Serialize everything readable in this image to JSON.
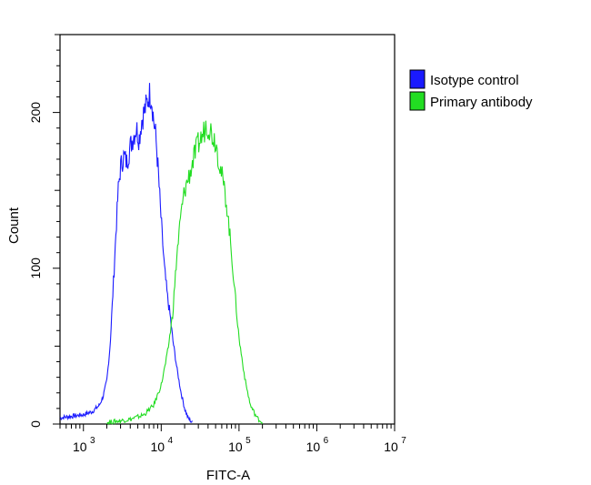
{
  "chart_data": {
    "type": "line",
    "title": "",
    "xlabel": "FITC-A",
    "ylabel": "Count",
    "x_scale": "log",
    "xlim": [
      500,
      10000000
    ],
    "ylim": [
      0,
      250
    ],
    "grid": false,
    "legend_position": "right",
    "x_ticks": [
      {
        "value": 1000,
        "base": "10",
        "exp": "3"
      },
      {
        "value": 10000,
        "base": "10",
        "exp": "4"
      },
      {
        "value": 100000,
        "base": "10",
        "exp": "5"
      },
      {
        "value": 1000000,
        "base": "10",
        "exp": "6"
      },
      {
        "value": 10000000,
        "base": "10",
        "exp": "7"
      }
    ],
    "y_ticks": [
      {
        "value": 0,
        "label": "0"
      },
      {
        "value": 100,
        "label": "100"
      },
      {
        "value": 200,
        "label": "200"
      }
    ],
    "series": [
      {
        "name": "Isotype control",
        "color": "#1a1aff",
        "x": [
          500,
          1000,
          1300,
          1600,
          1800,
          2000,
          2200,
          2400,
          2600,
          2800,
          3000,
          3300,
          3600,
          4000,
          4400,
          4800,
          5200,
          5600,
          6000,
          6500,
          7000,
          7500,
          8000,
          8500,
          9000,
          10000,
          11000,
          12000,
          13000,
          14000,
          16000,
          18000,
          20000,
          22000,
          25000
        ],
        "y": [
          4,
          6,
          8,
          12,
          18,
          28,
          50,
          85,
          120,
          150,
          165,
          172,
          168,
          178,
          185,
          190,
          183,
          195,
          200,
          205,
          212,
          210,
          195,
          185,
          168,
          130,
          100,
          82,
          70,
          55,
          35,
          20,
          10,
          4,
          1
        ]
      },
      {
        "name": "Primary antibody",
        "color": "#22dd22",
        "x": [
          2000,
          4000,
          6000,
          8000,
          10000,
          12000,
          14000,
          16000,
          18000,
          20000,
          23000,
          26000,
          30000,
          34000,
          38000,
          42000,
          46000,
          50000,
          55000,
          60000,
          70000,
          80000,
          90000,
          100000,
          120000,
          140000,
          170000,
          200000
        ],
        "y": [
          1,
          3,
          6,
          12,
          25,
          45,
          70,
          110,
          135,
          150,
          160,
          170,
          180,
          185,
          193,
          190,
          185,
          182,
          170,
          160,
          140,
          110,
          80,
          55,
          28,
          12,
          4,
          1
        ]
      }
    ]
  }
}
